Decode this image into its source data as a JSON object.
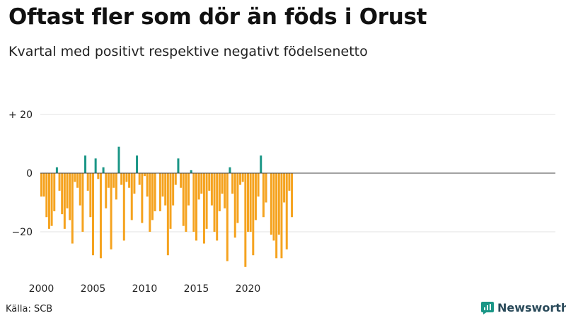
{
  "header": {
    "title": "Oftast fler som dör än föds i Orust",
    "subtitle": "Kvartal med positivt respektive negativt födelsenetto"
  },
  "footer": {
    "source": "Källa: SCB",
    "brand": "Newsworthy"
  },
  "colors": {
    "positive": "#1a9686",
    "negative": "#f5a31f",
    "grid": "#e3e3e3",
    "zero_line": "#444444",
    "brand_icon": "#1a9686"
  },
  "icons": {
    "brand": "newsworthy-logo-icon"
  },
  "chart_data": {
    "type": "bar",
    "title": "Oftast fler som dör än föds i Orust",
    "subtitle": "Kvartal med positivt respektive negativt födelsenetto",
    "xlabel": "",
    "ylabel": "",
    "start_year": 2000,
    "periods_per_year": 4,
    "ylim": [
      -36,
      25
    ],
    "yticks": [
      20,
      0,
      -20
    ],
    "ytick_labels": [
      "+ 20",
      "0",
      "−20"
    ],
    "xticks": [
      "2000",
      "2005",
      "2010",
      "2015",
      "2020"
    ],
    "grid": true,
    "values": [
      -8,
      -8,
      -15,
      -19,
      -18,
      -13,
      2,
      -6,
      -14,
      -19,
      -12,
      -16,
      -24,
      -3,
      -5,
      -11,
      -20,
      6,
      -6,
      -15,
      -28,
      5,
      -2,
      -29,
      2,
      -12,
      -5,
      -26,
      -5,
      -9,
      9,
      -4,
      -23,
      -3,
      -5,
      -16,
      -7,
      6,
      -4,
      -17,
      -1,
      -8,
      -20,
      -16,
      -13,
      0,
      -13,
      -8,
      -11,
      -28,
      -19,
      -11,
      -4,
      5,
      -5,
      -18,
      -20,
      -11,
      1,
      -20,
      -23,
      -9,
      -7,
      -24,
      -19,
      -6,
      -11,
      -20,
      -23,
      -13,
      -7,
      -12,
      -30,
      2,
      -7,
      -22,
      -17,
      -4,
      -3,
      -32,
      -20,
      -20,
      -28,
      -16,
      -8,
      6,
      -15,
      -10,
      0,
      -21,
      -23,
      -29,
      -21,
      -29,
      -10,
      -26,
      -6,
      -15
    ]
  }
}
